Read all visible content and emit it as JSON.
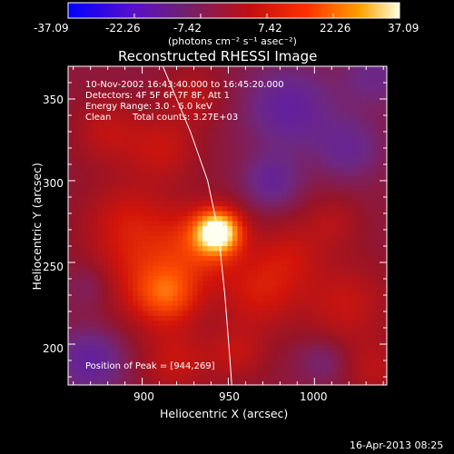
{
  "chart_data": {
    "type": "heatmap",
    "title": "Reconstructed RHESSI Image",
    "xlabel": "Heliocentric X (arcsec)",
    "ylabel": "Heliocentric Y (arcsec)",
    "xlim": [
      857,
      1042
    ],
    "ylim": [
      175,
      370
    ],
    "x_ticks": [
      900,
      950,
      1000
    ],
    "y_ticks": [
      200,
      250,
      300,
      350
    ],
    "colorbar": {
      "range": [
        -37.09,
        37.09
      ],
      "tick_labels": [
        "-37.09",
        "-22.26",
        "-7.42",
        "7.42",
        "22.26",
        "37.09"
      ],
      "tick_values": [
        -37.09,
        -22.26,
        -7.42,
        7.42,
        22.26,
        37.09
      ],
      "unit_label": "(photons cm⁻² s⁻¹ asec⁻²)",
      "colormap": [
        "#0000ff",
        "#5000c0",
        "#702070",
        "#b01010",
        "#ff2000",
        "#ff9000",
        "#ffff60",
        "#ffffff"
      ]
    },
    "annotations": [
      "10-Nov-2002 16:43:40.000 to 16:45:20.000",
      "Detectors: 4F 5F 6F 7F 8F, Att 1",
      "Energy Range: 3.0 - 6.0 keV",
      "Clean",
      "Total counts: 3.27E+03",
      "Position of Peak = [944,269]"
    ],
    "peak": {
      "x": 944,
      "y": 269,
      "value": 37.09
    },
    "limb_curve_points": [
      [
        912,
        370
      ],
      [
        928,
        330
      ],
      [
        938,
        300
      ],
      [
        944,
        270
      ],
      [
        948,
        230
      ],
      [
        951,
        190
      ],
      [
        952,
        175
      ]
    ],
    "sources": [
      {
        "x": 944,
        "y": 269,
        "sigma": 9,
        "value": 37
      },
      {
        "x": 935,
        "y": 262,
        "sigma": 16,
        "value": 14
      },
      {
        "x": 905,
        "y": 240,
        "sigma": 20,
        "value": 12
      },
      {
        "x": 892,
        "y": 275,
        "sigma": 18,
        "value": 10
      },
      {
        "x": 915,
        "y": 230,
        "sigma": 12,
        "value": 14
      },
      {
        "x": 968,
        "y": 232,
        "sigma": 16,
        "value": 11
      },
      {
        "x": 985,
        "y": 255,
        "sigma": 14,
        "value": 8
      },
      {
        "x": 1018,
        "y": 225,
        "sigma": 18,
        "value": 9
      },
      {
        "x": 1010,
        "y": 275,
        "sigma": 12,
        "value": 6
      },
      {
        "x": 880,
        "y": 330,
        "sigma": 14,
        "value": 8
      },
      {
        "x": 912,
        "y": 320,
        "sigma": 14,
        "value": 9
      },
      {
        "x": 930,
        "y": 352,
        "sigma": 12,
        "value": 7
      },
      {
        "x": 920,
        "y": 190,
        "sigma": 14,
        "value": 9
      },
      {
        "x": 955,
        "y": 195,
        "sigma": 12,
        "value": 8
      },
      {
        "x": 1035,
        "y": 185,
        "sigma": 12,
        "value": 7
      },
      {
        "x": 975,
        "y": 300,
        "sigma": 12,
        "value": -10
      },
      {
        "x": 985,
        "y": 345,
        "sigma": 18,
        "value": -12
      },
      {
        "x": 1020,
        "y": 320,
        "sigma": 14,
        "value": -9
      },
      {
        "x": 870,
        "y": 190,
        "sigma": 14,
        "value": -12
      },
      {
        "x": 1005,
        "y": 190,
        "sigma": 10,
        "value": -6
      },
      {
        "x": 1035,
        "y": 365,
        "sigma": 14,
        "value": -8
      },
      {
        "x": 870,
        "y": 235,
        "sigma": 10,
        "value": -5
      }
    ]
  },
  "footer": {
    "date": "16-Apr-2013 08:25"
  }
}
